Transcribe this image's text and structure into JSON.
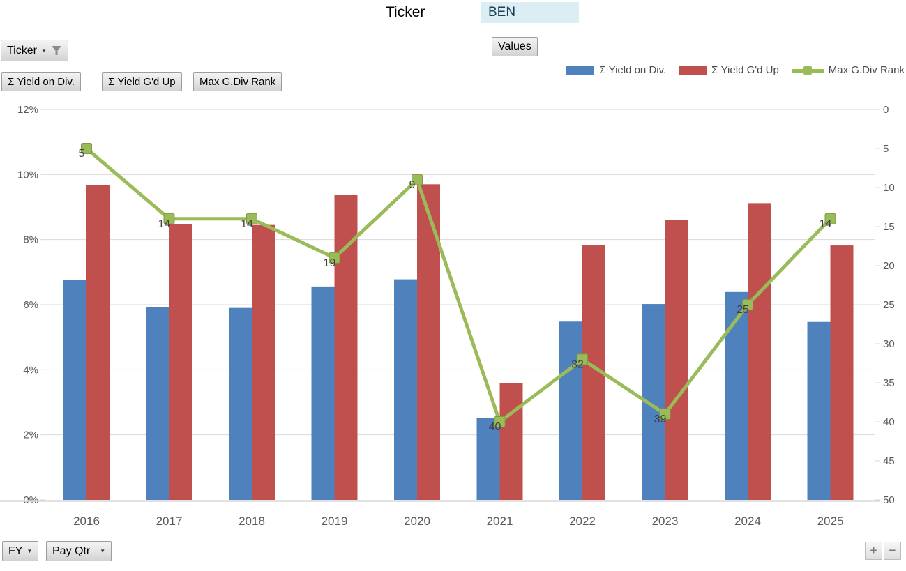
{
  "header": {
    "ticker_label": "Ticker",
    "ticker_value": "BEN",
    "values_button": "Values",
    "filter_button_label": "Ticker"
  },
  "field_buttons": [
    {
      "label": "Σ Yield on Div."
    },
    {
      "label": "Σ Yield G'd Up"
    },
    {
      "label": "Max G.Div Rank"
    }
  ],
  "axis_field_buttons": [
    {
      "label": "FY"
    },
    {
      "label": "Pay Qtr"
    }
  ],
  "zoom_buttons": {
    "expand": "+",
    "collapse": "−"
  },
  "legend": [
    {
      "label": "Σ Yield on Div.",
      "color": "#4F81BD",
      "type": "bar"
    },
    {
      "label": "Σ Yield G'd Up",
      "color": "#C0504D",
      "type": "bar"
    },
    {
      "label": "Max G.Div Rank",
      "color": "#9BBB59",
      "type": "line"
    }
  ],
  "colors": {
    "bar_blue": "#4F81BD",
    "bar_red": "#C0504D",
    "line_green": "#9BBB59",
    "line_green_border": "#7e9a43",
    "gridline": "#d9d9d9",
    "axis_text": "#595959",
    "data_label_text": "#3f3f3f",
    "input_cell_bg": "#daeef3"
  },
  "chart_data": {
    "type": "bar",
    "subtype": "combo-bar-line-dual-axis",
    "categories": [
      "2016",
      "2017",
      "2018",
      "2019",
      "2020",
      "2021",
      "2022",
      "2023",
      "2024",
      "2025"
    ],
    "series": [
      {
        "name": "Σ Yield on Div.",
        "chart_type": "bar",
        "axis": "left",
        "color": "#4F81BD",
        "values": [
          6.76,
          5.92,
          5.9,
          6.56,
          6.78,
          2.51,
          5.48,
          6.02,
          6.39,
          5.47
        ]
      },
      {
        "name": "Σ Yield G'd Up",
        "chart_type": "bar",
        "axis": "left",
        "color": "#C0504D",
        "values": [
          9.68,
          8.47,
          8.45,
          9.38,
          9.7,
          3.59,
          7.83,
          8.6,
          9.12,
          7.82
        ]
      },
      {
        "name": "Max G.Div Rank",
        "chart_type": "line",
        "axis": "right",
        "color": "#9BBB59",
        "data_labels": true,
        "values": [
          5,
          14,
          14,
          19,
          9,
          40,
          32,
          39,
          25,
          14
        ]
      }
    ],
    "left_axis": {
      "min": 0,
      "max": 12,
      "step": 2,
      "format": "percent",
      "tick_labels": [
        "0%",
        "2%",
        "4%",
        "6%",
        "8%",
        "10%",
        "12%"
      ]
    },
    "right_axis": {
      "min": 0,
      "max": 50,
      "step": 5,
      "inverted": true,
      "tick_labels": [
        "0",
        "5",
        "10",
        "15",
        "20",
        "25",
        "30",
        "35",
        "40",
        "45",
        "50"
      ]
    },
    "grid": true,
    "legend_position": "top-right",
    "title": ""
  }
}
